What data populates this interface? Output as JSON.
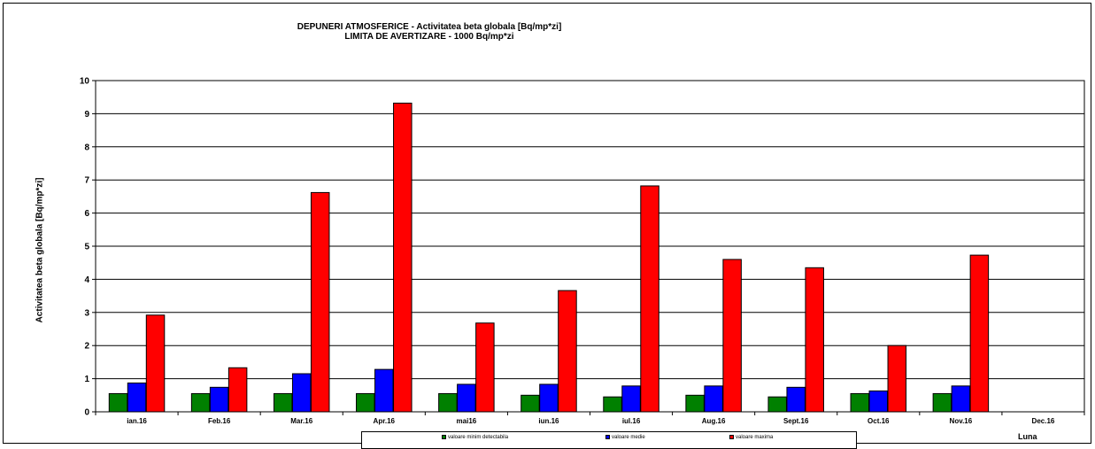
{
  "chart_data": {
    "type": "bar",
    "title": "DEPUNERI ATMOSFERICE - Activitatea beta globala [Bq/mp*zi]",
    "subtitle": "LIMITA DE AVERTIZARE - 1000 Bq/mp*zi",
    "xlabel": "Luna",
    "ylabel": "Activitatea beta globala [Bq/mp*zi]",
    "ylim": [
      0,
      10
    ],
    "yticks": [
      "0",
      "1",
      "2",
      "3",
      "4",
      "5",
      "6",
      "7",
      "8",
      "9",
      "10"
    ],
    "grid": true,
    "legend_position": "bottom",
    "categories": [
      "ian.16",
      "Feb.16",
      "Mar.16",
      "Apr.16",
      "mai16",
      "iun.16",
      "iul.16",
      "Aug.16",
      "Sept.16",
      "Oct.16",
      "Nov.16",
      "Dec.16"
    ],
    "series": [
      {
        "name": "valoare minim detectabila",
        "color": "#008000",
        "values": [
          0.55,
          0.55,
          0.55,
          0.55,
          0.55,
          0.5,
          0.45,
          0.5,
          0.45,
          0.55,
          0.55,
          null
        ]
      },
      {
        "name": "valoare medie",
        "color": "#0000ff",
        "values": [
          0.87,
          0.74,
          1.15,
          1.28,
          0.83,
          0.83,
          0.78,
          0.78,
          0.74,
          0.63,
          0.78,
          null
        ]
      },
      {
        "name": "valoare maxima",
        "color": "#ff0000",
        "values": [
          2.92,
          1.33,
          6.62,
          9.32,
          2.68,
          3.66,
          6.82,
          4.6,
          4.35,
          2.0,
          4.73,
          null
        ]
      }
    ]
  }
}
